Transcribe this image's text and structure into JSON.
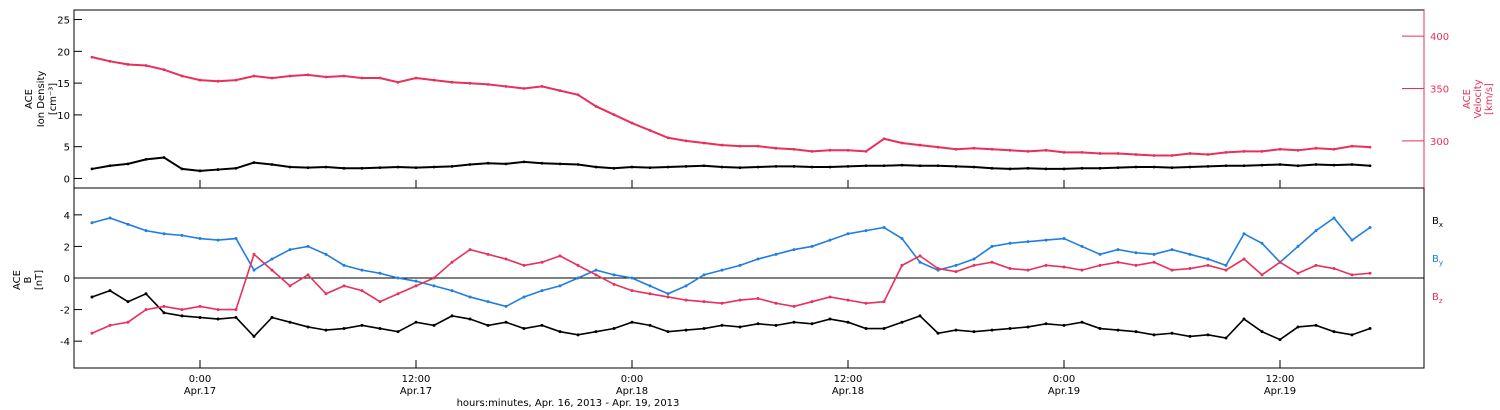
{
  "chart_data": [
    {
      "type": "scatter",
      "ylabel_lines": [
        "ACE",
        "Ion Density",
        "[cm⁻³]"
      ],
      "y2label_lines": [
        "ACE",
        "Velocity",
        "[km/s]"
      ],
      "ylim": [
        -1.5,
        26.5
      ],
      "y2lim": [
        255,
        425
      ],
      "yticks": [
        0,
        5,
        10,
        15,
        20,
        25
      ],
      "y2ticks": [
        300,
        350,
        400
      ],
      "xlim": [
        -7,
        68
      ],
      "series": [
        {
          "key": "density",
          "color": "#000000",
          "axis": "left",
          "x": [
            -6,
            -5,
            -4,
            -3,
            -2,
            -1,
            0,
            1,
            2,
            3,
            4,
            5,
            6,
            7,
            8,
            9,
            10,
            11,
            12,
            13,
            14,
            15,
            16,
            17,
            18,
            19,
            20,
            21,
            22,
            23,
            24,
            25,
            26,
            27,
            28,
            29,
            30,
            31,
            32,
            33,
            34,
            35,
            36,
            37,
            38,
            39,
            40,
            41,
            42,
            43,
            44,
            45,
            46,
            47,
            48,
            49,
            50,
            51,
            52,
            53,
            54,
            55,
            56,
            57,
            58,
            59,
            60,
            61,
            62,
            63,
            64,
            65
          ],
          "y": [
            1.5,
            2.0,
            2.3,
            3.0,
            3.3,
            1.5,
            1.2,
            1.4,
            1.6,
            2.5,
            2.2,
            1.8,
            1.7,
            1.8,
            1.6,
            1.6,
            1.7,
            1.8,
            1.7,
            1.8,
            1.9,
            2.2,
            2.4,
            2.3,
            2.6,
            2.4,
            2.3,
            2.2,
            1.8,
            1.6,
            1.8,
            1.7,
            1.8,
            1.9,
            2.0,
            1.8,
            1.7,
            1.8,
            1.9,
            1.9,
            1.8,
            1.8,
            1.9,
            2.0,
            2.0,
            2.1,
            2.0,
            2.0,
            1.9,
            1.8,
            1.6,
            1.5,
            1.6,
            1.5,
            1.5,
            1.6,
            1.6,
            1.7,
            1.8,
            1.8,
            1.7,
            1.8,
            1.9,
            2.0,
            2.0,
            2.1,
            2.2,
            2.0,
            2.2,
            2.1,
            2.2,
            2.0
          ]
        },
        {
          "key": "velocity",
          "color": "#e8305a",
          "axis": "right",
          "x": [
            -6,
            -5,
            -4,
            -3,
            -2,
            -1,
            0,
            1,
            2,
            3,
            4,
            5,
            6,
            7,
            8,
            9,
            10,
            11,
            12,
            13,
            14,
            15,
            16,
            17,
            18,
            19,
            20,
            21,
            22,
            23,
            24,
            25,
            26,
            27,
            28,
            29,
            30,
            31,
            32,
            33,
            34,
            35,
            36,
            37,
            38,
            39,
            40,
            41,
            42,
            43,
            44,
            45,
            46,
            47,
            48,
            49,
            50,
            51,
            52,
            53,
            54,
            55,
            56,
            57,
            58,
            59,
            60,
            61,
            62,
            63,
            64,
            65
          ],
          "y": [
            380,
            376,
            373,
            372,
            368,
            362,
            358,
            357,
            358,
            362,
            360,
            362,
            363,
            361,
            362,
            360,
            360,
            356,
            360,
            358,
            356,
            355,
            354,
            352,
            350,
            352,
            348,
            344,
            333,
            325,
            317,
            310,
            303,
            300,
            298,
            296,
            295,
            295,
            293,
            292,
            290,
            291,
            291,
            290,
            302,
            298,
            296,
            294,
            292,
            293,
            292,
            291,
            290,
            291,
            289,
            289,
            288,
            288,
            287,
            286,
            286,
            288,
            287,
            289,
            290,
            290,
            292,
            291,
            293,
            292,
            295,
            294
          ]
        }
      ]
    },
    {
      "type": "scatter",
      "ylabel_lines": [
        "ACE",
        "B",
        "[nT]"
      ],
      "ylim": [
        -5.7,
        5.7
      ],
      "yticks": [
        -4,
        -2,
        0,
        2,
        4
      ],
      "xlim": [
        -7,
        68
      ],
      "zero_line": true,
      "series": [
        {
          "name": "B",
          "sub": "x",
          "key": "bx",
          "color": "#000000",
          "x": [
            -6,
            -5,
            -4,
            -3,
            -2,
            -1,
            0,
            1,
            2,
            3,
            4,
            5,
            6,
            7,
            8,
            9,
            10,
            11,
            12,
            13,
            14,
            15,
            16,
            17,
            18,
            19,
            20,
            21,
            22,
            23,
            24,
            25,
            26,
            27,
            28,
            29,
            30,
            31,
            32,
            33,
            34,
            35,
            36,
            37,
            38,
            39,
            40,
            41,
            42,
            43,
            44,
            45,
            46,
            47,
            48,
            49,
            50,
            51,
            52,
            53,
            54,
            55,
            56,
            57,
            58,
            59,
            60,
            61,
            62,
            63,
            64,
            65
          ],
          "y": [
            -1.2,
            -0.8,
            -1.5,
            -1.0,
            -2.2,
            -2.4,
            -2.5,
            -2.6,
            -2.5,
            -3.7,
            -2.5,
            -2.8,
            -3.1,
            -3.3,
            -3.2,
            -3.0,
            -3.2,
            -3.4,
            -2.8,
            -3.0,
            -2.4,
            -2.6,
            -3.0,
            -2.8,
            -3.2,
            -3.0,
            -3.4,
            -3.6,
            -3.4,
            -3.2,
            -2.8,
            -3.0,
            -3.4,
            -3.3,
            -3.2,
            -3.0,
            -3.1,
            -2.9,
            -3.0,
            -2.8,
            -2.9,
            -2.6,
            -2.8,
            -3.2,
            -3.2,
            -2.8,
            -2.4,
            -3.5,
            -3.3,
            -3.4,
            -3.3,
            -3.2,
            -3.1,
            -2.9,
            -3.0,
            -2.8,
            -3.2,
            -3.3,
            -3.4,
            -3.6,
            -3.5,
            -3.7,
            -3.6,
            -3.8,
            -2.6,
            -3.4,
            -3.9,
            -3.1,
            -3.0,
            -3.4,
            -3.6,
            -3.2
          ]
        },
        {
          "name": "B",
          "sub": "y",
          "key": "by",
          "color": "#1f7ee0",
          "x": [
            -6,
            -5,
            -4,
            -3,
            -2,
            -1,
            0,
            1,
            2,
            3,
            4,
            5,
            6,
            7,
            8,
            9,
            10,
            11,
            12,
            13,
            14,
            15,
            16,
            17,
            18,
            19,
            20,
            21,
            22,
            23,
            24,
            25,
            26,
            27,
            28,
            29,
            30,
            31,
            32,
            33,
            34,
            35,
            36,
            37,
            38,
            39,
            40,
            41,
            42,
            43,
            44,
            45,
            46,
            47,
            48,
            49,
            50,
            51,
            52,
            53,
            54,
            55,
            56,
            57,
            58,
            59,
            60,
            61,
            62,
            63,
            64,
            65
          ],
          "y": [
            3.5,
            3.8,
            3.4,
            3.0,
            2.8,
            2.7,
            2.5,
            2.4,
            2.5,
            0.5,
            1.2,
            1.8,
            2.0,
            1.5,
            0.8,
            0.5,
            0.3,
            0.0,
            -0.2,
            -0.5,
            -0.8,
            -1.2,
            -1.5,
            -1.8,
            -1.2,
            -0.8,
            -0.5,
            0.0,
            0.5,
            0.2,
            0.0,
            -0.5,
            -1.0,
            -0.5,
            0.2,
            0.5,
            0.8,
            1.2,
            1.5,
            1.8,
            2.0,
            2.4,
            2.8,
            3.0,
            3.2,
            2.5,
            1.0,
            0.5,
            0.8,
            1.2,
            2.0,
            2.2,
            2.3,
            2.4,
            2.5,
            2.0,
            1.5,
            1.8,
            1.6,
            1.5,
            1.8,
            1.5,
            1.2,
            0.8,
            2.8,
            2.2,
            1.0,
            2.0,
            3.0,
            3.8,
            2.4,
            3.2
          ]
        },
        {
          "name": "B",
          "sub": "z",
          "key": "bz",
          "color": "#e8305a",
          "x": [
            -6,
            -5,
            -4,
            -3,
            -2,
            -1,
            0,
            1,
            2,
            3,
            4,
            5,
            6,
            7,
            8,
            9,
            10,
            11,
            12,
            13,
            14,
            15,
            16,
            17,
            18,
            19,
            20,
            21,
            22,
            23,
            24,
            25,
            26,
            27,
            28,
            29,
            30,
            31,
            32,
            33,
            34,
            35,
            36,
            37,
            38,
            39,
            40,
            41,
            42,
            43,
            44,
            45,
            46,
            47,
            48,
            49,
            50,
            51,
            52,
            53,
            54,
            55,
            56,
            57,
            58,
            59,
            60,
            61,
            62,
            63,
            64,
            65
          ],
          "y": [
            -3.5,
            -3.0,
            -2.8,
            -2.0,
            -1.8,
            -2.0,
            -1.8,
            -2.0,
            -2.0,
            1.5,
            0.5,
            -0.5,
            0.2,
            -1.0,
            -0.5,
            -0.8,
            -1.5,
            -1.0,
            -0.5,
            0.0,
            1.0,
            1.8,
            1.5,
            1.2,
            0.8,
            1.0,
            1.4,
            0.8,
            0.2,
            -0.4,
            -0.8,
            -1.0,
            -1.2,
            -1.4,
            -1.5,
            -1.6,
            -1.4,
            -1.3,
            -1.6,
            -1.8,
            -1.5,
            -1.2,
            -1.4,
            -1.6,
            -1.5,
            0.8,
            1.4,
            0.6,
            0.4,
            0.8,
            1.0,
            0.6,
            0.5,
            0.8,
            0.7,
            0.5,
            0.8,
            1.0,
            0.8,
            1.0,
            0.5,
            0.6,
            0.8,
            0.5,
            1.2,
            0.2,
            1.0,
            0.3,
            0.8,
            0.6,
            0.2,
            0.3
          ]
        }
      ]
    }
  ],
  "xaxis": {
    "ticks": [
      {
        "x": 0,
        "time": "0:00",
        "date": "Apr.17"
      },
      {
        "x": 12,
        "time": "12:00",
        "date": "Apr.17"
      },
      {
        "x": 24,
        "time": "0:00",
        "date": "Apr.18"
      },
      {
        "x": 36,
        "time": "12:00",
        "date": "Apr.18"
      },
      {
        "x": 48,
        "time": "0:00",
        "date": "Apr.19"
      },
      {
        "x": 60,
        "time": "12:00",
        "date": "Apr.19"
      }
    ],
    "label": "hours:minutes, Apr. 16, 2013 - Apr. 19, 2013"
  }
}
